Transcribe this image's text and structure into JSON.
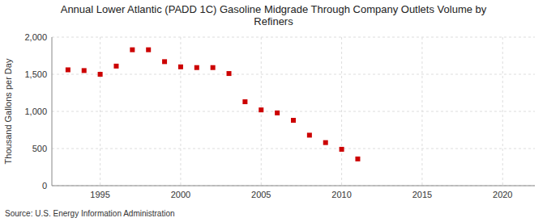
{
  "chart_data": {
    "type": "scatter",
    "title": "Annual Lower Atlantic (PADD 1C) Gasoline Midgrade Through Company Outlets Volume by\nRefiners",
    "ylabel": "Thousand Gallons per Day",
    "source": "Source: U.S. Energy Information Administration",
    "x": [
      1993,
      1994,
      1995,
      1996,
      1997,
      1998,
      1999,
      2000,
      2001,
      2002,
      2003,
      2004,
      2005,
      2006,
      2007,
      2008,
      2009,
      2010,
      2011
    ],
    "values": [
      1560,
      1550,
      1500,
      1610,
      1830,
      1830,
      1670,
      1600,
      1590,
      1590,
      1510,
      1130,
      1020,
      980,
      880,
      680,
      580,
      490,
      360
    ],
    "color": "#cc0000",
    "marker": "square",
    "xlim": [
      1992,
      2022
    ],
    "ylim": [
      0,
      2000
    ],
    "xticks": [
      1995,
      2000,
      2005,
      2010,
      2015,
      2020
    ],
    "yticks": [
      0,
      500,
      {
        "value": 1000,
        "label": "1,000"
      },
      {
        "value": 1500,
        "label": "1,500"
      },
      {
        "value": 2000,
        "label": "2,000"
      }
    ],
    "grid": true
  }
}
